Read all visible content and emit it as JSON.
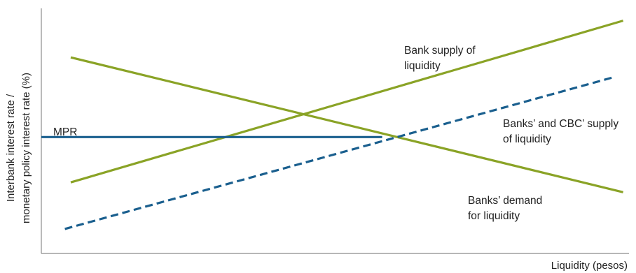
{
  "chart_data": {
    "type": "line",
    "title": "",
    "xlabel": "Liquidity (pesos)",
    "ylabel_lines": [
      "Interbank interest rate /",
      "monetary policy interest rate (%)"
    ],
    "xlim": [
      0,
      100
    ],
    "ylim": [
      0,
      100
    ],
    "grid": false,
    "series": [
      {
        "name": "Banks’ demand for liquidity",
        "label_lines": [
          "Banks’ demand",
          "for liquidity"
        ],
        "color": "#8aa326",
        "style": "solid",
        "x": [
          5,
          99
        ],
        "y": [
          80,
          25
        ]
      },
      {
        "name": "Bank supply of liquidity",
        "label_lines": [
          "Bank supply of",
          "liquidity"
        ],
        "color": "#8aa326",
        "style": "solid",
        "x": [
          5,
          99
        ],
        "y": [
          29,
          95
        ]
      },
      {
        "name": "Banks’ and CBC’ supply of liquidity",
        "label_lines": [
          "Banks’ and CBC’ supply",
          "of liquidity"
        ],
        "color": "#1a5f8e",
        "style": "dashed",
        "x": [
          4,
          97.5
        ],
        "y": [
          10,
          72
        ]
      },
      {
        "name": "MPR",
        "label_lines": [
          "MPR"
        ],
        "color": "#1a5f8e",
        "style": "solid",
        "x": [
          0,
          58
        ],
        "y": [
          47.5,
          47.5
        ]
      }
    ]
  }
}
